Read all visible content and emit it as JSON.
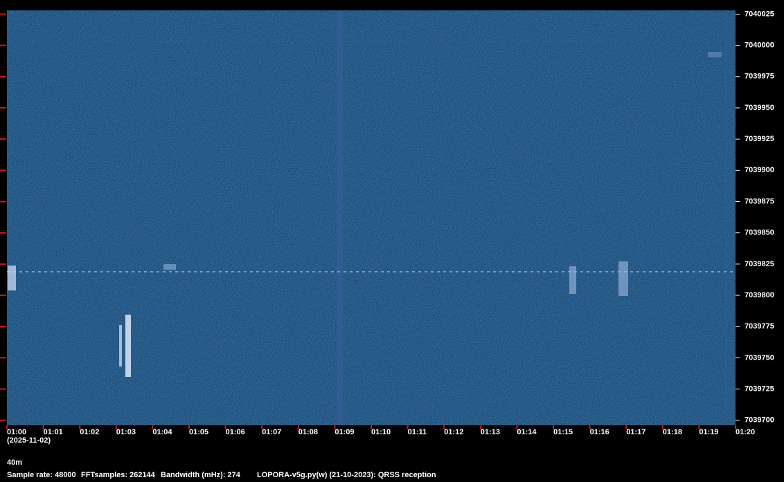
{
  "chart_data": {
    "type": "spectrogram",
    "ylim": [
      7039696,
      7040028
    ],
    "yticks": [
      7040025,
      7040000,
      7039975,
      7039950,
      7039925,
      7039900,
      7039875,
      7039850,
      7039825,
      7039800,
      7039775,
      7039750,
      7039725,
      7039700
    ],
    "xlim": [
      0,
      20
    ],
    "xticks": [
      {
        "value": 0,
        "label": "01:00"
      },
      {
        "value": 1,
        "label": "01:01"
      },
      {
        "value": 2,
        "label": "01:02"
      },
      {
        "value": 3,
        "label": "01:03"
      },
      {
        "value": 4,
        "label": "01:04"
      },
      {
        "value": 5,
        "label": "01:05"
      },
      {
        "value": 6,
        "label": "01:06"
      },
      {
        "value": 7,
        "label": "01:07"
      },
      {
        "value": 8,
        "label": "01:08"
      },
      {
        "value": 9,
        "label": "01:09"
      },
      {
        "value": 10,
        "label": "01:10"
      },
      {
        "value": 11,
        "label": "01:11"
      },
      {
        "value": 12,
        "label": "01:12"
      },
      {
        "value": 13,
        "label": "01:13"
      },
      {
        "value": 14,
        "label": "01:14"
      },
      {
        "value": 15,
        "label": "01:15"
      },
      {
        "value": 16,
        "label": "01:16"
      },
      {
        "value": 17,
        "label": "01:17"
      },
      {
        "value": 18,
        "label": "01:18"
      },
      {
        "value": 19,
        "label": "01:19"
      },
      {
        "value": 20,
        "label": "01:20"
      }
    ],
    "date_label": "(2025-11-02)",
    "band": "40m",
    "footer": [
      "Sample rate: 48000",
      "FFTsamples: 262144",
      "Bandwidth (mHz): 274",
      "LOPORA-v5g.py(w) (21-10-2023): QRSS reception"
    ],
    "tick_color": "#e01010"
  }
}
